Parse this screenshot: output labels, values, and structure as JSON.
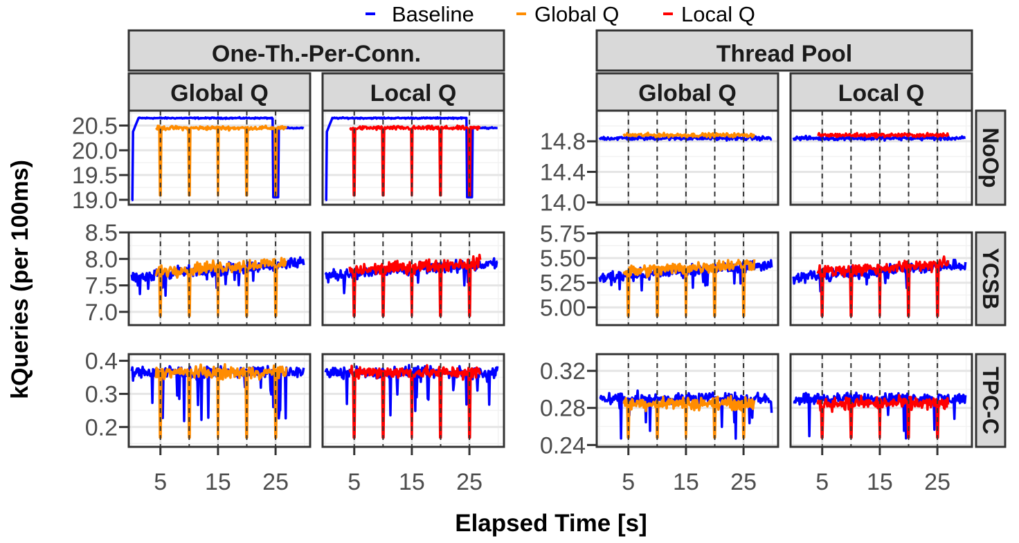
{
  "chart_data": {
    "type": "line",
    "xlabel": "Elapsed Time [s]",
    "ylabel": "kQueries (per 100ms)",
    "legend": {
      "placement": "top-center",
      "entries": [
        {
          "name": "Baseline",
          "color": "#0000ff"
        },
        {
          "name": "Global Q",
          "color": "#ff8c00"
        },
        {
          "name": "Local Q",
          "color": "#ff0000"
        }
      ]
    },
    "column_groups": [
      "One-Th.-Per-Conn.",
      "Thread Pool"
    ],
    "column_labels": [
      "Global Q",
      "Local Q",
      "Global Q",
      "Local Q"
    ],
    "row_labels": [
      "NoOp",
      "YCSB",
      "TPC-C"
    ],
    "x_range": [
      -0.5,
      31
    ],
    "x_ticks": [
      "5",
      "15",
      "25"
    ],
    "grid": true,
    "event_lines_x": [
      5,
      10,
      15,
      20,
      25
    ],
    "panel_y_ranges": [
      [
        [
          18.9,
          20.8
        ],
        [
          13.97,
          15.2
        ]
      ],
      [
        [
          6.75,
          8.5
        ],
        [
          4.82,
          5.76
        ]
      ],
      [
        [
          0.14,
          0.42
        ],
        [
          0.238,
          0.338
        ]
      ]
    ],
    "panel_y_ticks": [
      [
        [
          "19.0",
          "19.5",
          "20.0",
          "20.5"
        ],
        [
          "14.0",
          "14.4",
          "14.8"
        ]
      ],
      [
        [
          "7.0",
          "7.5",
          "8.0",
          "8.5"
        ],
        [
          "5.00",
          "5.25",
          "5.50",
          "5.75"
        ]
      ],
      [
        [
          "0.2",
          "0.3",
          "0.4"
        ],
        [
          "0.24",
          "0.28",
          "0.32"
        ]
      ]
    ],
    "baseline_levels": [
      [
        20.65,
        14.84
      ],
      [
        7.8,
        5.37
      ],
      [
        0.365,
        0.29
      ]
    ],
    "queue_levels": [
      [
        20.45,
        14.88
      ],
      [
        7.85,
        5.4
      ],
      [
        0.365,
        0.285
      ]
    ],
    "series_start_x": 4.2,
    "series_end_x": 27
  }
}
